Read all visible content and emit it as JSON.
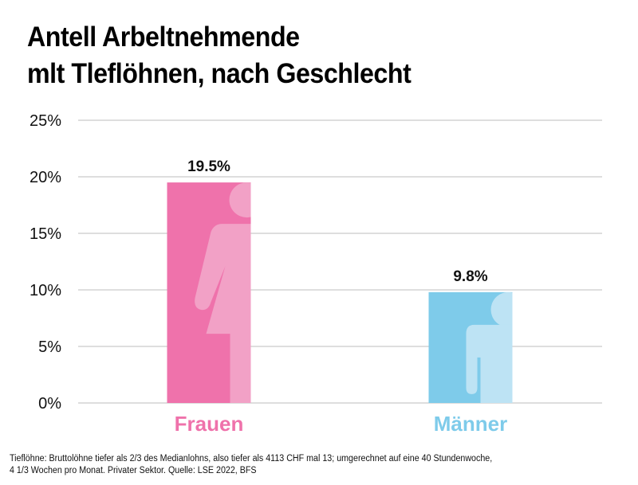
{
  "chart_data": {
    "type": "bar",
    "title": [
      "Antell Arbeltnehmende",
      "mlt Tleflöhnen, nach Geschlecht"
    ],
    "categories": [
      "Frauen",
      "Männer"
    ],
    "values": [
      19.5,
      9.8
    ],
    "data_labels": [
      "19.5%",
      "9.8%"
    ],
    "ylim": [
      0,
      25
    ],
    "yticks": [
      0,
      5,
      10,
      15,
      20,
      25
    ],
    "ytick_labels": [
      "0%",
      "5%",
      "10%",
      "15%",
      "20%",
      "25%"
    ],
    "xlabel": "",
    "ylabel": "",
    "grid": true,
    "colors": {
      "Frauen": {
        "bar": "#ef72ab",
        "figure": "#f2a1c6",
        "label": "#ef72ab"
      },
      "Männer": {
        "bar": "#7ecbea",
        "figure": "#bde3f4",
        "label": "#7ecbea"
      }
    },
    "icons": [
      "female-figure-icon",
      "male-figure-icon"
    ]
  },
  "footnote": [
    "Tieflöhne: Bruttolöhne tiefer als 2/3 des Medianlohns, also tiefer als 4113 CHF mal 13; umgerechnet auf eine 40 Stundenwoche,",
    "4 1/3 Wochen pro Monat. Privater Sektor. Quelle: LSE 2022, BFS"
  ]
}
